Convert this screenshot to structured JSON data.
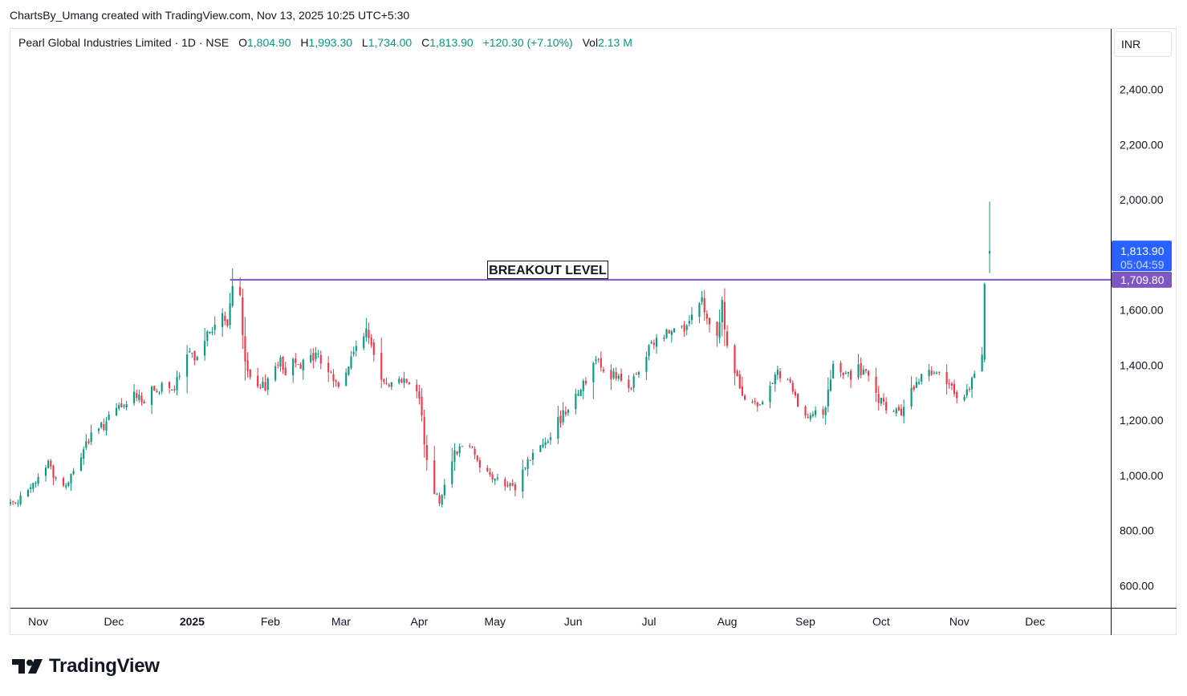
{
  "header": {
    "credit": "ChartsBy_Umang created with TradingView.com, Nov 13, 2025 10:25 UTC+5:30"
  },
  "legend": {
    "symbol": "Pearl Global Industries Limited · 1D · NSE",
    "open_label": "O",
    "open": "1,804.90",
    "high_label": "H",
    "high": "1,993.30",
    "low_label": "L",
    "low": "1,734.00",
    "close_label": "C",
    "close": "1,813.90",
    "change": "+120.30 (+7.10%)",
    "vol_label": "Vol",
    "vol": "2.13 M"
  },
  "price_axis": {
    "currency": "INR",
    "last_price": "1,813.90",
    "countdown": "05:04:59",
    "level_label": "1,709.80"
  },
  "annotation": {
    "text": "BREAKOUT LEVEL"
  },
  "brand": {
    "name": "TradingView"
  },
  "colors": {
    "up": "#089981",
    "down": "#f23645",
    "level_line": "#7e57c2",
    "last_price_tag": "#2962ff",
    "level_tag": "#7e57c2",
    "grid": "#e0e3eb"
  },
  "chart_data": {
    "type": "candlestick",
    "title": "Pearl Global Industries Limited · 1D · NSE",
    "ylim": [
      520,
      2620
    ],
    "y_ticks": [
      600,
      800,
      1000,
      1200,
      1400,
      1600,
      1800,
      2000,
      2200,
      2400
    ],
    "y_tick_labels": [
      "600.00",
      "800.00",
      "1,000.00",
      "1,200.00",
      "1,400.00",
      "1,600.00",
      "1,800.00",
      "2,000.00",
      "2,200.00",
      "2,400.00"
    ],
    "x_range": [
      "2024-10-21",
      "2025-12-31"
    ],
    "x_ticks": [
      {
        "date": "2024-11-01",
        "label": "Nov",
        "bold": false
      },
      {
        "date": "2024-12-01",
        "label": "Dec",
        "bold": false
      },
      {
        "date": "2025-01-01",
        "label": "2025",
        "bold": true
      },
      {
        "date": "2025-02-01",
        "label": "Feb",
        "bold": false
      },
      {
        "date": "2025-03-01",
        "label": "Mar",
        "bold": false
      },
      {
        "date": "2025-04-01",
        "label": "Apr",
        "bold": false
      },
      {
        "date": "2025-05-01",
        "label": "May",
        "bold": false
      },
      {
        "date": "2025-06-01",
        "label": "Jun",
        "bold": false
      },
      {
        "date": "2025-07-01",
        "label": "Jul",
        "bold": false
      },
      {
        "date": "2025-08-01",
        "label": "Aug",
        "bold": false
      },
      {
        "date": "2025-09-01",
        "label": "Sep",
        "bold": false
      },
      {
        "date": "2025-10-01",
        "label": "Oct",
        "bold": false
      },
      {
        "date": "2025-11-01",
        "label": "Nov",
        "bold": false
      },
      {
        "date": "2025-12-01",
        "label": "Dec",
        "bold": false
      }
    ],
    "breakout_level": 1709.8,
    "breakout_start_date": "2025-01-16",
    "last_price": 1813.9,
    "close_path": [
      [
        "2024-10-21",
        900
      ],
      [
        "2024-10-28",
        935
      ],
      [
        "2024-11-05",
        1050
      ],
      [
        "2024-11-08",
        985
      ],
      [
        "2024-11-12",
        960
      ],
      [
        "2024-11-15",
        1010
      ],
      [
        "2024-11-20",
        1120
      ],
      [
        "2024-11-26",
        1175
      ],
      [
        "2024-12-03",
        1240
      ],
      [
        "2024-12-06",
        1255
      ],
      [
        "2024-12-10",
        1300
      ],
      [
        "2024-12-13",
        1270
      ],
      [
        "2024-12-18",
        1320
      ],
      [
        "2024-12-24",
        1300
      ],
      [
        "2024-12-30",
        1420
      ],
      [
        "2025-01-03",
        1450
      ],
      [
        "2025-01-08",
        1520
      ],
      [
        "2025-01-13",
        1575
      ],
      [
        "2025-01-15",
        1530
      ],
      [
        "2025-01-17",
        1700
      ],
      [
        "2025-01-20",
        1660
      ],
      [
        "2025-01-22",
        1390
      ],
      [
        "2025-01-27",
        1300
      ],
      [
        "2025-01-30",
        1330
      ],
      [
        "2025-02-04",
        1420
      ],
      [
        "2025-02-07",
        1380
      ],
      [
        "2025-02-11",
        1430
      ],
      [
        "2025-02-14",
        1400
      ],
      [
        "2025-02-19",
        1440
      ],
      [
        "2025-02-24",
        1380
      ],
      [
        "2025-02-28",
        1320
      ],
      [
        "2025-03-05",
        1420
      ],
      [
        "2025-03-10",
        1530
      ],
      [
        "2025-03-13",
        1470
      ],
      [
        "2025-03-17",
        1370
      ],
      [
        "2025-03-21",
        1330
      ],
      [
        "2025-03-26",
        1360
      ],
      [
        "2025-03-28",
        1320
      ],
      [
        "2025-04-01",
        1290
      ],
      [
        "2025-04-04",
        1050
      ],
      [
        "2025-04-07",
        940
      ],
      [
        "2025-04-09",
        910
      ],
      [
        "2025-04-15",
        1090
      ],
      [
        "2025-04-21",
        1120
      ],
      [
        "2025-04-25",
        1040
      ],
      [
        "2025-04-30",
        990
      ],
      [
        "2025-05-06",
        960
      ],
      [
        "2025-05-09",
        950
      ],
      [
        "2025-05-13",
        1040
      ],
      [
        "2025-05-19",
        1110
      ],
      [
        "2025-05-23",
        1150
      ],
      [
        "2025-05-29",
        1240
      ],
      [
        "2025-06-03",
        1310
      ],
      [
        "2025-06-06",
        1340
      ],
      [
        "2025-06-10",
        1440
      ],
      [
        "2025-06-13",
        1390
      ],
      [
        "2025-06-18",
        1350
      ],
      [
        "2025-06-23",
        1310
      ],
      [
        "2025-06-27",
        1380
      ],
      [
        "2025-07-02",
        1470
      ],
      [
        "2025-07-08",
        1520
      ],
      [
        "2025-07-11",
        1560
      ],
      [
        "2025-07-15",
        1520
      ],
      [
        "2025-07-18",
        1560
      ],
      [
        "2025-07-22",
        1620
      ],
      [
        "2025-07-24",
        1560
      ],
      [
        "2025-07-28",
        1520
      ],
      [
        "2025-07-30",
        1620
      ],
      [
        "2025-08-01",
        1470
      ],
      [
        "2025-08-05",
        1340
      ],
      [
        "2025-08-08",
        1270
      ],
      [
        "2025-08-13",
        1250
      ],
      [
        "2025-08-18",
        1340
      ],
      [
        "2025-08-21",
        1360
      ],
      [
        "2025-08-26",
        1330
      ],
      [
        "2025-08-29",
        1240
      ],
      [
        "2025-09-03",
        1230
      ],
      [
        "2025-09-08",
        1210
      ],
      [
        "2025-09-12",
        1390
      ],
      [
        "2025-09-17",
        1360
      ],
      [
        "2025-09-22",
        1380
      ],
      [
        "2025-09-25",
        1370
      ],
      [
        "2025-09-29",
        1280
      ],
      [
        "2025-10-02",
        1250
      ],
      [
        "2025-10-07",
        1230
      ],
      [
        "2025-10-10",
        1230
      ],
      [
        "2025-10-14",
        1320
      ],
      [
        "2025-10-17",
        1360
      ],
      [
        "2025-10-21",
        1390
      ],
      [
        "2025-10-24",
        1360
      ],
      [
        "2025-10-28",
        1310
      ],
      [
        "2025-10-31",
        1300
      ],
      [
        "2025-11-04",
        1300
      ],
      [
        "2025-11-07",
        1360
      ],
      [
        "2025-11-10",
        1420
      ],
      [
        "2025-11-11",
        1693.6
      ],
      [
        "2025-11-13",
        1813.9
      ]
    ],
    "highlight_candles": [
      {
        "date": "2025-11-11",
        "open": 1420,
        "high": 1700,
        "low": 1410,
        "close": 1693.6
      },
      {
        "date": "2025-11-13",
        "open": 1804.9,
        "high": 1993.3,
        "low": 1734.0,
        "close": 1813.9
      }
    ]
  }
}
